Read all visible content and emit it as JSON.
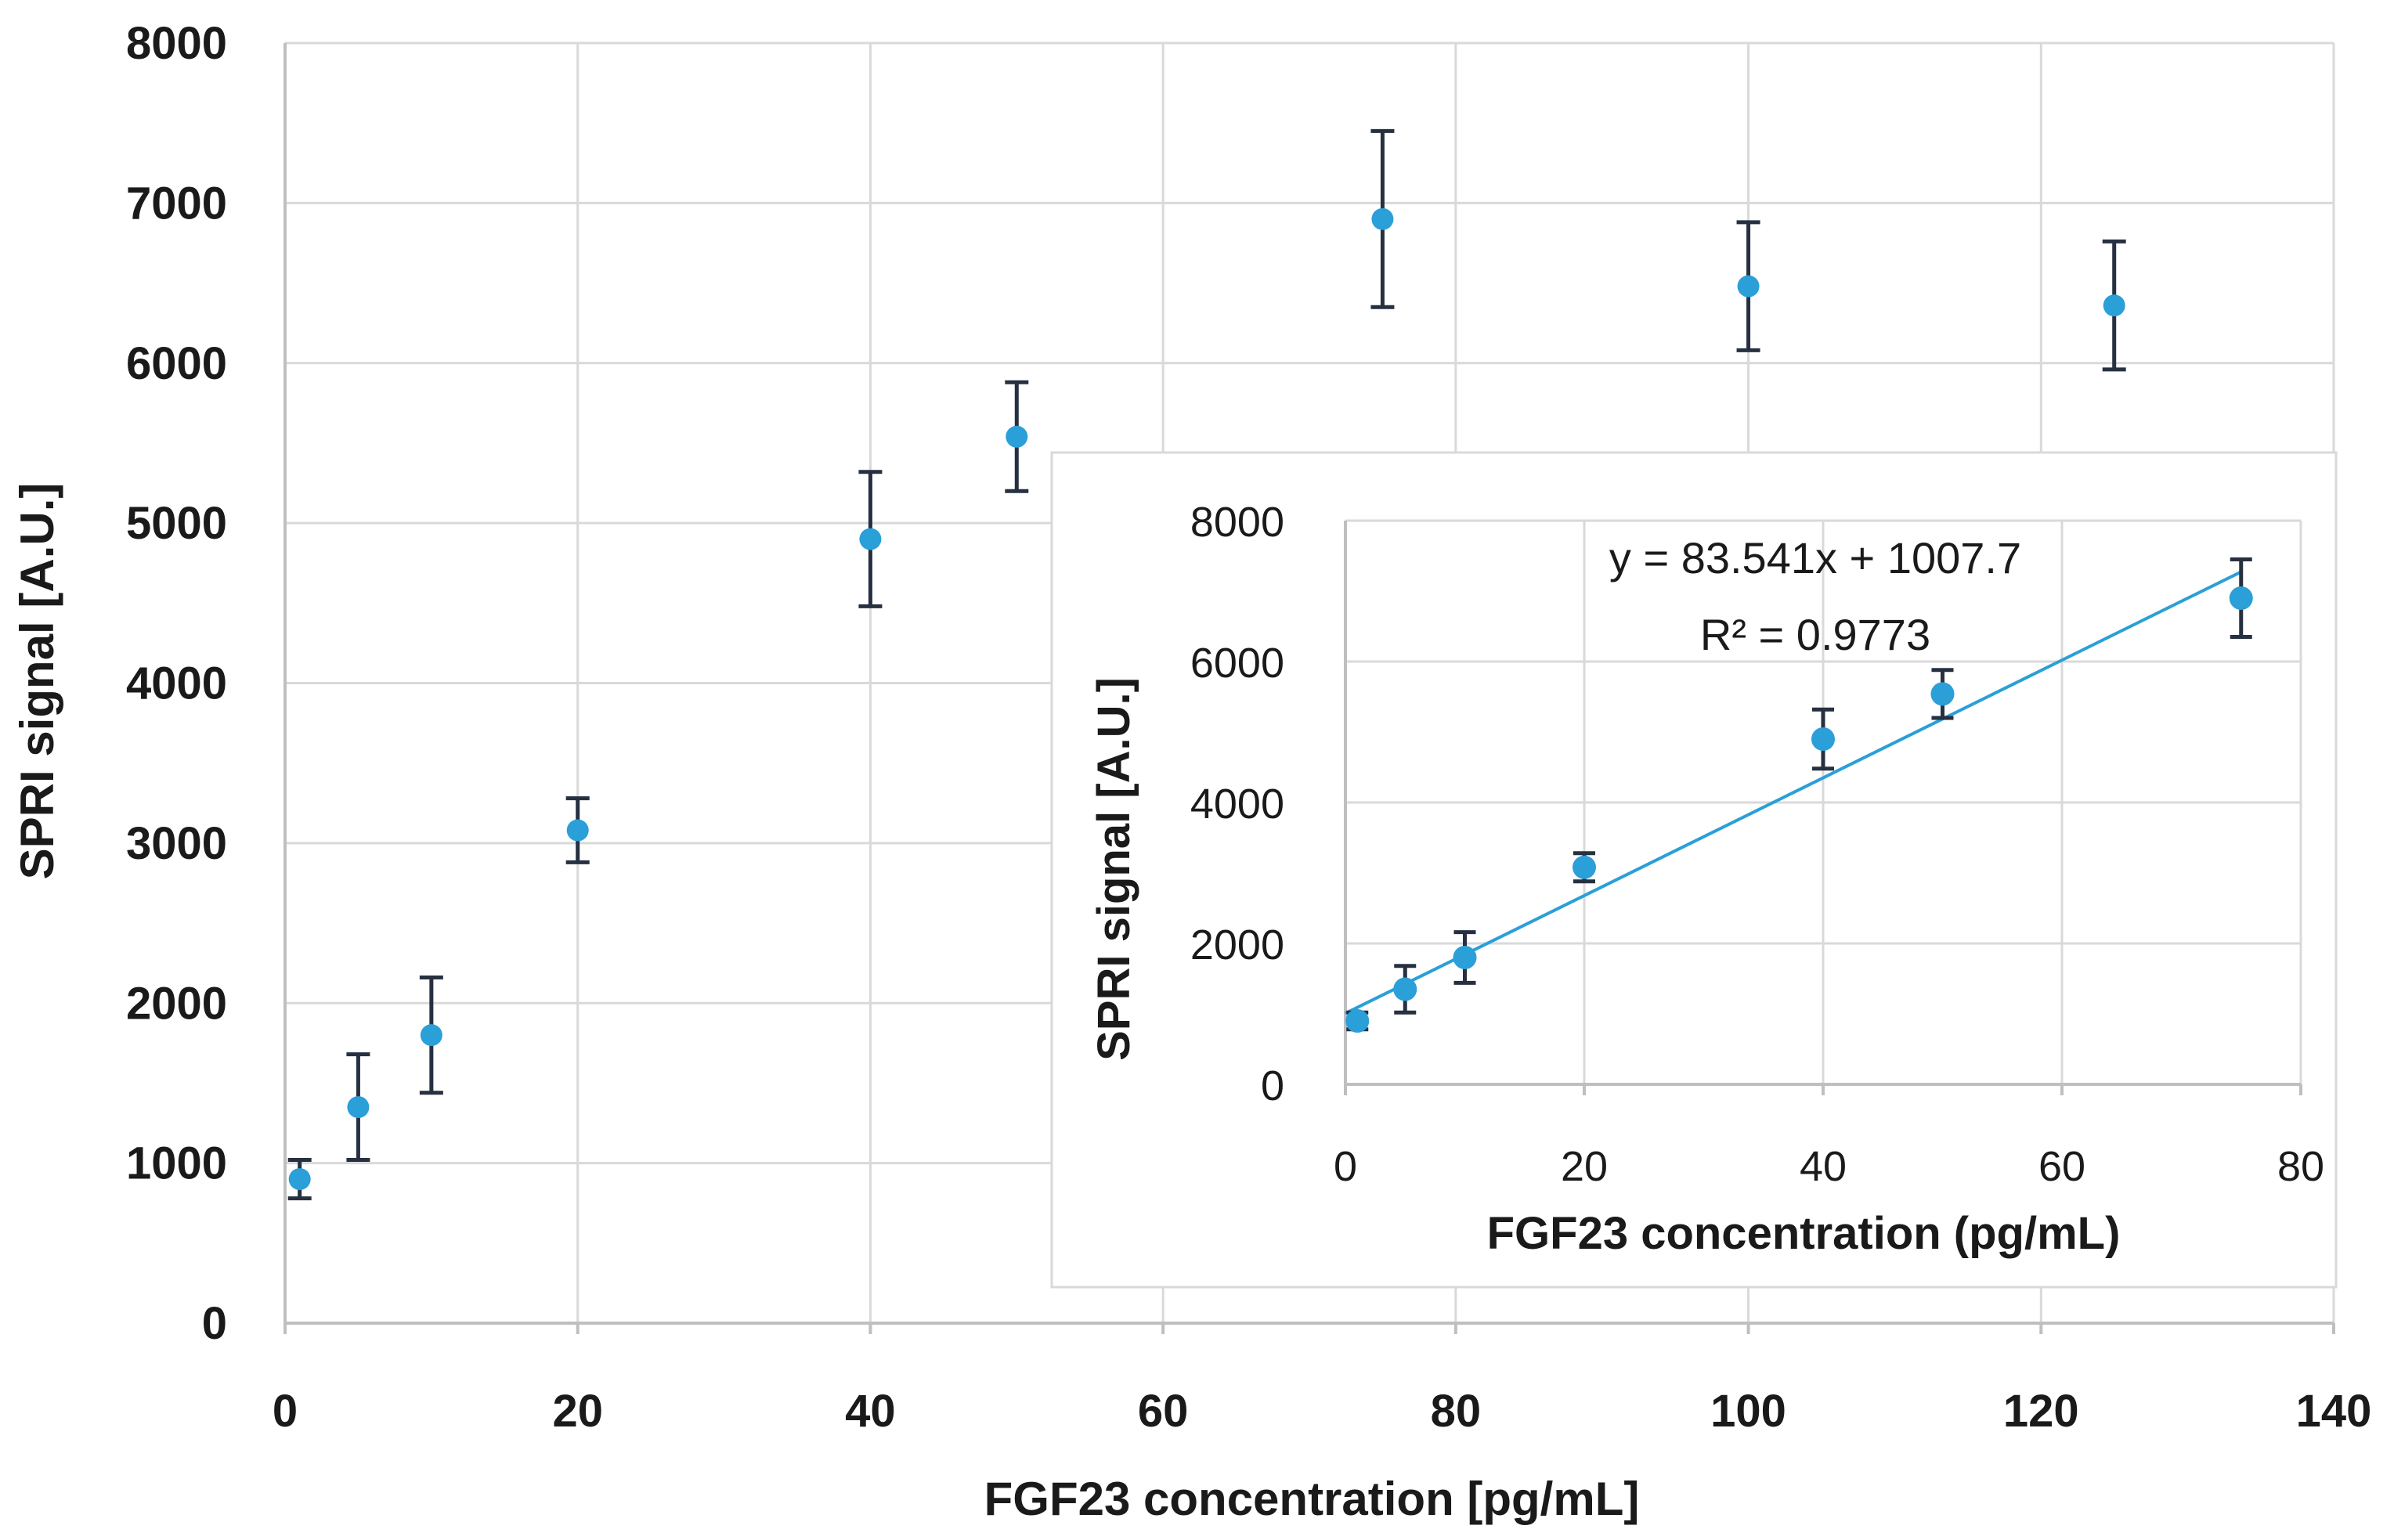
{
  "chart_data": [
    {
      "type": "scatter",
      "name": "main",
      "xlabel": "FGF23 concentration [pg/mL]",
      "ylabel": "SPRI signal [A.U.]",
      "xlim": [
        0,
        140
      ],
      "ylim": [
        0,
        8000
      ],
      "xticks": [
        0,
        20,
        40,
        60,
        80,
        100,
        120,
        140
      ],
      "yticks": [
        0,
        1000,
        2000,
        3000,
        4000,
        5000,
        6000,
        7000,
        8000
      ],
      "grid": true,
      "points": [
        {
          "x": 1,
          "y": 900,
          "err": 120
        },
        {
          "x": 5,
          "y": 1350,
          "err": 330
        },
        {
          "x": 10,
          "y": 1800,
          "err": 360
        },
        {
          "x": 20,
          "y": 3080,
          "err": 200
        },
        {
          "x": 40,
          "y": 4900,
          "err": 420
        },
        {
          "x": 50,
          "y": 5540,
          "err": 340
        },
        {
          "x": 75,
          "y": 6900,
          "err": 550
        },
        {
          "x": 100,
          "y": 6480,
          "err": 400
        },
        {
          "x": 125,
          "y": 6360,
          "err": 400
        }
      ]
    },
    {
      "type": "scatter",
      "name": "inset",
      "xlabel": "FGF23 concentration (pg/mL)",
      "ylabel": "SPRI signal [A.U.]",
      "xlim": [
        0,
        80
      ],
      "ylim": [
        0,
        8000
      ],
      "xticks": [
        0,
        20,
        40,
        60,
        80
      ],
      "yticks": [
        0,
        2000,
        4000,
        6000,
        8000
      ],
      "grid": true,
      "points": [
        {
          "x": 1,
          "y": 900,
          "err": 120
        },
        {
          "x": 5,
          "y": 1350,
          "err": 330
        },
        {
          "x": 10,
          "y": 1800,
          "err": 360
        },
        {
          "x": 20,
          "y": 3080,
          "err": 200
        },
        {
          "x": 40,
          "y": 4900,
          "err": 420
        },
        {
          "x": 50,
          "y": 5540,
          "err": 340
        },
        {
          "x": 75,
          "y": 6900,
          "err": 550
        }
      ],
      "trendline": {
        "slope": 83.541,
        "intercept": 1007.7,
        "x_from": 0,
        "x_to": 75
      },
      "equation": "y = 83.541x + 1007.7",
      "r_squared": "R² = 0.9773"
    }
  ],
  "colors": {
    "points": "#2a9fd8",
    "trendline": "#2a9fd8",
    "error_bars": "#263040",
    "grid": "#d9d9d9"
  }
}
